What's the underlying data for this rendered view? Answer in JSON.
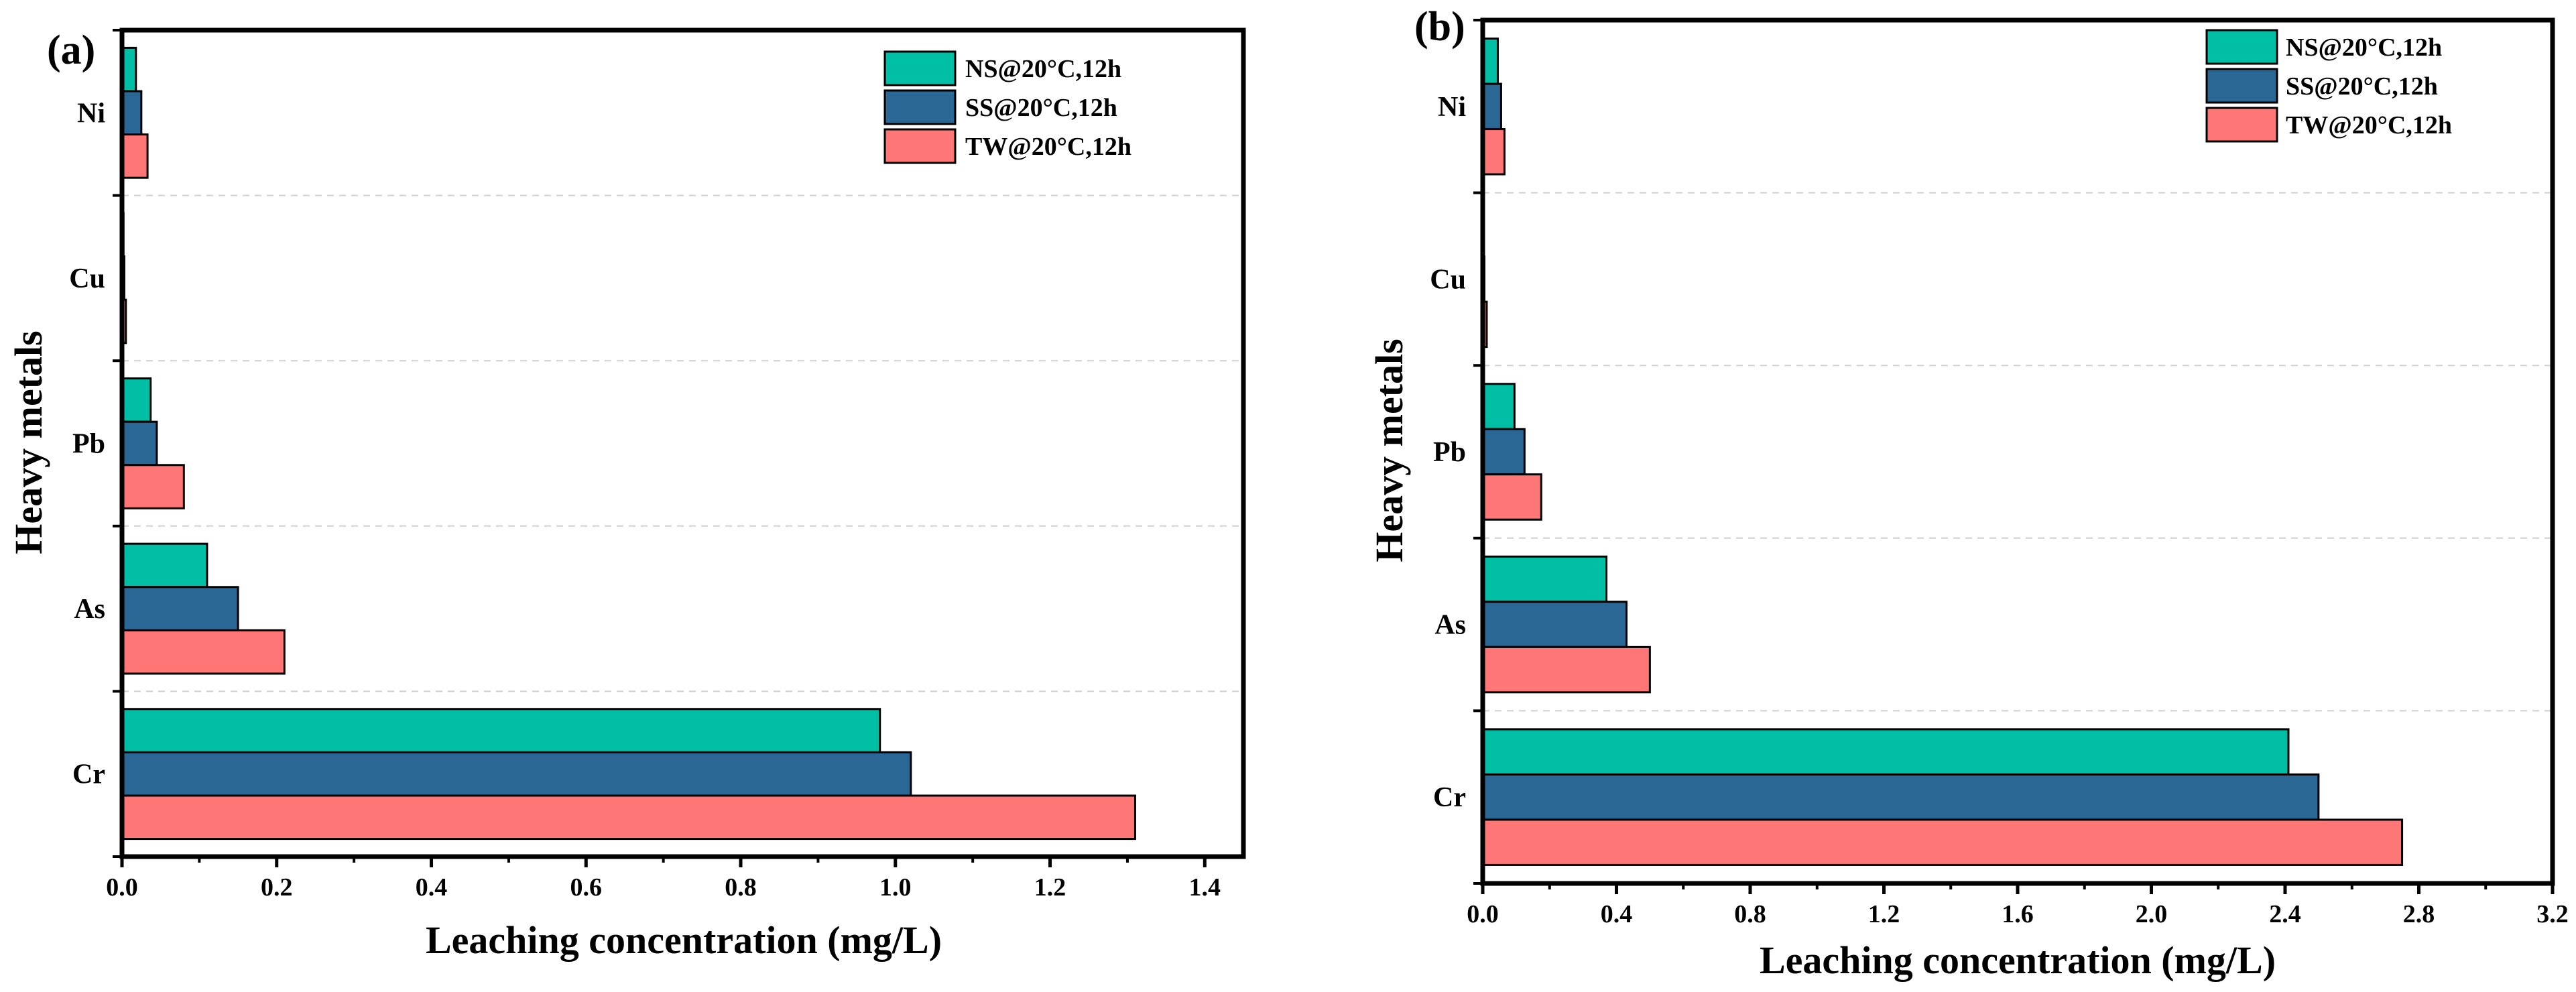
{
  "chart_data": [
    {
      "type": "bar",
      "orientation": "horizontal",
      "panel_label": "(a)",
      "categories": [
        "Cr",
        "As",
        "Pb",
        "Cu",
        "Ni"
      ],
      "series": [
        {
          "name": "NS@20°C,12h",
          "color": "#00BFA5",
          "values": [
            0.98,
            0.11,
            0.037,
            0.002,
            0.018
          ]
        },
        {
          "name": "SS@20°C,12h",
          "color": "#2A6794",
          "values": [
            1.02,
            0.15,
            0.045,
            0.003,
            0.025
          ]
        },
        {
          "name": "TW@20°C,12h",
          "color": "#FF7676",
          "values": [
            1.31,
            0.21,
            0.08,
            0.005,
            0.033
          ]
        }
      ],
      "xlabel": "Leaching concentration (mg/L)",
      "ylabel": "Heavy metals",
      "xlim": [
        0,
        1.45
      ],
      "xticks": [
        0.0,
        0.2,
        0.4,
        0.6,
        0.8,
        1.0,
        1.2,
        1.4
      ],
      "xtick_labels": [
        "0.0",
        "0.2",
        "0.4",
        "0.6",
        "0.8",
        "1.0",
        "1.2",
        "1.4"
      ],
      "grid": "horizontal dashed",
      "legend": "top-right"
    },
    {
      "type": "bar",
      "orientation": "horizontal",
      "panel_label": "(b)",
      "categories": [
        "Cr",
        "As",
        "Pb",
        "Cu",
        "Ni"
      ],
      "series": [
        {
          "name": "NS@20°C,12h",
          "color": "#00BFA5",
          "values": [
            2.41,
            0.37,
            0.095,
            0.004,
            0.045
          ]
        },
        {
          "name": "SS@20°C,12h",
          "color": "#2A6794",
          "values": [
            2.5,
            0.43,
            0.125,
            0.005,
            0.055
          ]
        },
        {
          "name": "TW@20°C,12h",
          "color": "#FF7676",
          "values": [
            2.75,
            0.5,
            0.175,
            0.012,
            0.065
          ]
        }
      ],
      "xlabel": "Leaching concentration (mg/L)",
      "ylabel": "Heavy metals",
      "xlim": [
        0,
        3.2
      ],
      "xticks": [
        0.0,
        0.4,
        0.8,
        1.2,
        1.6,
        2.0,
        2.4,
        2.8,
        3.2
      ],
      "xtick_labels": [
        "0.0",
        "0.4",
        "0.8",
        "1.2",
        "1.6",
        "2.0",
        "2.4",
        "2.8",
        "3.2"
      ],
      "grid": "horizontal dashed",
      "legend": "top-right"
    }
  ]
}
